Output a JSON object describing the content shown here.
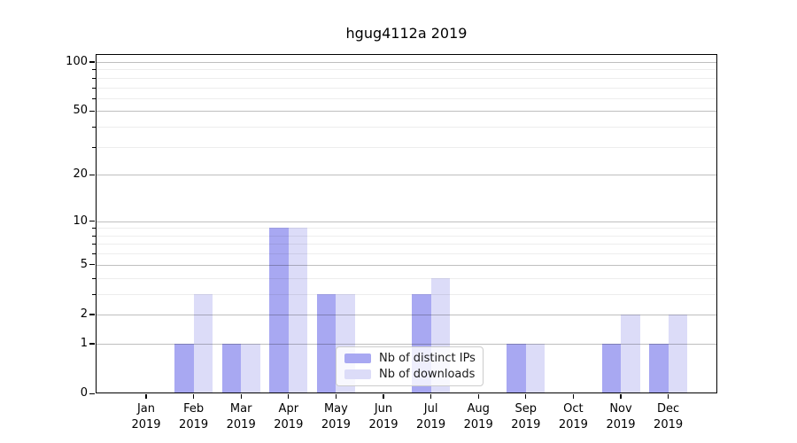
{
  "chart_data": {
    "type": "bar",
    "title": "hgug4112a 2019",
    "categories": [
      "Jan",
      "Feb",
      "Mar",
      "Apr",
      "May",
      "Jun",
      "Jul",
      "Aug",
      "Sep",
      "Oct",
      "Nov",
      "Dec"
    ],
    "x_year": "2019",
    "series": [
      {
        "name": "Nb of distinct IPs",
        "color": "#a8a8f2",
        "values": [
          0,
          1,
          1,
          9,
          3,
          0,
          3,
          0,
          1,
          0,
          1,
          1
        ]
      },
      {
        "name": "Nb of downloads",
        "color": "#dcdcf8",
        "values": [
          0,
          3,
          1,
          9,
          3,
          0,
          4,
          0,
          1,
          0,
          2,
          2
        ]
      }
    ],
    "y_scale": "log(v+1)",
    "y_ticks": [
      0,
      1,
      2,
      5,
      10,
      20,
      50,
      100
    ],
    "y_minor_ticks": [
      3,
      4,
      6,
      7,
      8,
      9,
      30,
      40,
      60,
      70,
      80,
      90
    ],
    "ylim": [
      0,
      110
    ],
    "grid": true,
    "legend_position": "lower center"
  }
}
